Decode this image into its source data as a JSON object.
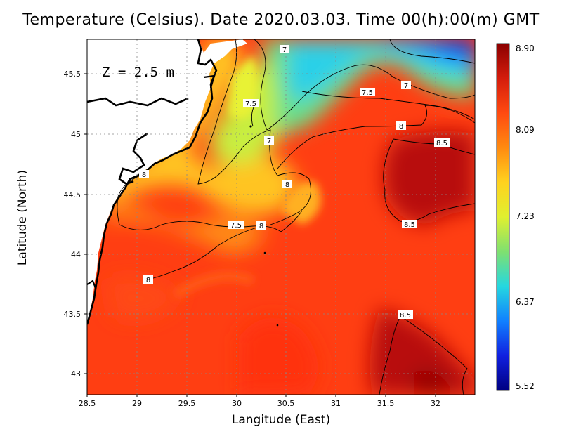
{
  "title": "Temperature (Celsius). Date 2020.03.03. Time 00(h):00(m)  GMT",
  "depth_label": "Z = 2.5 m",
  "x_axis": {
    "label": "Langitude (East)",
    "ticks": [
      "28.5",
      "29",
      "29.5",
      "30",
      "30.5",
      "31",
      "31.5",
      "32"
    ]
  },
  "y_axis": {
    "label": "Latitude (North)",
    "ticks": [
      "45.5",
      "45",
      "44.5",
      "44",
      "43.5",
      "43"
    ]
  },
  "colorbar": {
    "ticks": [
      "8.90",
      "8.09",
      "7.23",
      "6.37",
      "5.52"
    ],
    "colors": [
      "#8b0000",
      "#d41c0c",
      "#ff4a10",
      "#ff8a10",
      "#ffd21e",
      "#e0f030",
      "#7fe070",
      "#25d7e0",
      "#1080ff",
      "#1020e0",
      "#000080"
    ]
  },
  "contour_labels": [
    {
      "text": "7"
    },
    {
      "text": "7"
    },
    {
      "text": "7.5"
    },
    {
      "text": "7.5"
    },
    {
      "text": "7"
    },
    {
      "text": "8"
    },
    {
      "text": "8.5"
    },
    {
      "text": "8"
    },
    {
      "text": "8"
    },
    {
      "text": "7.5"
    },
    {
      "text": "8"
    },
    {
      "text": "8.5"
    },
    {
      "text": "8"
    },
    {
      "text": "8.5"
    }
  ]
}
